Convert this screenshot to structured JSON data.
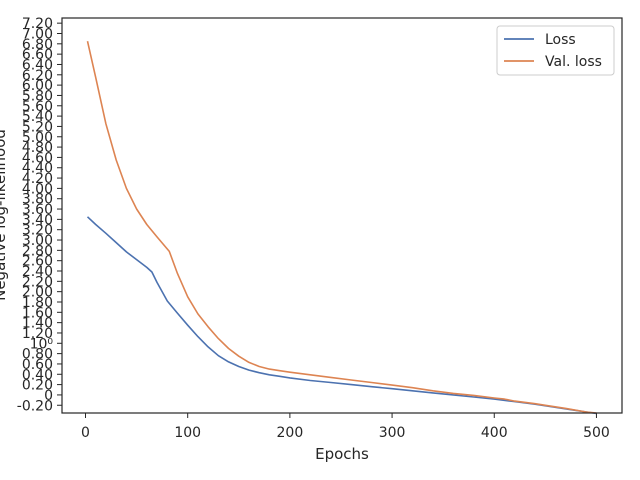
{
  "chart_data": {
    "type": "line",
    "xlabel": "Epochs",
    "ylabel": "Negative log-likelihood",
    "xlim": [
      -23,
      525
    ],
    "ylim": [
      -0.35,
      7.3
    ],
    "grid": false,
    "legend_position": "top-right",
    "x_ticks": [
      {
        "value": 0,
        "label": "0"
      },
      {
        "value": 100,
        "label": "100"
      },
      {
        "value": 200,
        "label": "200"
      },
      {
        "value": 300,
        "label": "300"
      },
      {
        "value": 400,
        "label": "400"
      },
      {
        "value": 500,
        "label": "500"
      }
    ],
    "y_ticks": [
      {
        "value": -0.2,
        "label": "-0.20"
      },
      {
        "value": 0,
        "label": "0"
      },
      {
        "value": 0.2,
        "label": "0.20"
      },
      {
        "value": 0.4,
        "label": "0.40"
      },
      {
        "value": 0.6,
        "label": "0.60"
      },
      {
        "value": 0.8,
        "label": "0.80"
      },
      {
        "value": 1.0,
        "label": "10⁰"
      },
      {
        "value": 1.2,
        "label": "1.20"
      },
      {
        "value": 1.4,
        "label": "1.40"
      },
      {
        "value": 1.6,
        "label": "1.60"
      },
      {
        "value": 1.8,
        "label": "1.80"
      },
      {
        "value": 2.0,
        "label": "2.00"
      },
      {
        "value": 2.2,
        "label": "2.20"
      },
      {
        "value": 2.4,
        "label": "2.40"
      },
      {
        "value": 2.6,
        "label": "2.60"
      },
      {
        "value": 2.8,
        "label": "2.80"
      },
      {
        "value": 3.0,
        "label": "3.00"
      },
      {
        "value": 3.2,
        "label": "3.20"
      },
      {
        "value": 3.4,
        "label": "3.40"
      },
      {
        "value": 3.6,
        "label": "3.60"
      },
      {
        "value": 3.8,
        "label": "3.80"
      },
      {
        "value": 4.0,
        "label": "4.00"
      },
      {
        "value": 4.2,
        "label": "4.20"
      },
      {
        "value": 4.4,
        "label": "4.40"
      },
      {
        "value": 4.6,
        "label": "4.60"
      },
      {
        "value": 4.8,
        "label": "4.80"
      },
      {
        "value": 5.0,
        "label": "5.00"
      },
      {
        "value": 5.2,
        "label": "5.20"
      },
      {
        "value": 5.4,
        "label": "5.40"
      },
      {
        "value": 5.6,
        "label": "5.60"
      },
      {
        "value": 5.8,
        "label": "5.80"
      },
      {
        "value": 6.0,
        "label": "6.00"
      },
      {
        "value": 6.2,
        "label": "6.20"
      },
      {
        "value": 6.4,
        "label": "6.40"
      },
      {
        "value": 6.6,
        "label": "6.60"
      },
      {
        "value": 6.8,
        "label": "6.80"
      },
      {
        "value": 7.0,
        "label": "7.00"
      },
      {
        "value": 7.2,
        "label": "7.20"
      }
    ],
    "series": [
      {
        "name": "Loss",
        "color": "#4c72b0",
        "x": [
          2,
          10,
          20,
          30,
          40,
          50,
          60,
          65,
          70,
          80,
          90,
          100,
          110,
          120,
          130,
          140,
          150,
          160,
          170,
          180,
          190,
          200,
          220,
          240,
          260,
          280,
          300,
          320,
          340,
          360,
          380,
          400,
          420,
          440,
          460,
          480,
          500
        ],
        "y": [
          3.45,
          3.3,
          3.13,
          2.95,
          2.77,
          2.62,
          2.47,
          2.38,
          2.18,
          1.82,
          1.58,
          1.35,
          1.13,
          0.93,
          0.76,
          0.64,
          0.55,
          0.48,
          0.43,
          0.39,
          0.36,
          0.33,
          0.28,
          0.24,
          0.2,
          0.16,
          0.12,
          0.08,
          0.04,
          0.0,
          -0.04,
          -0.08,
          -0.13,
          -0.18,
          -0.24,
          -0.3,
          -0.36
        ]
      },
      {
        "name": "Val. loss",
        "color": "#dd8452",
        "x": [
          2,
          10,
          20,
          30,
          40,
          50,
          60,
          70,
          82,
          90,
          100,
          110,
          120,
          130,
          140,
          150,
          160,
          170,
          180,
          190,
          200,
          220,
          240,
          260,
          280,
          300,
          320,
          340,
          360,
          380,
          400,
          410,
          420,
          440,
          450,
          470,
          490,
          500
        ],
        "y": [
          6.85,
          6.15,
          5.25,
          4.55,
          4.0,
          3.6,
          3.3,
          3.06,
          2.78,
          2.35,
          1.9,
          1.57,
          1.32,
          1.09,
          0.9,
          0.75,
          0.63,
          0.55,
          0.5,
          0.47,
          0.44,
          0.39,
          0.34,
          0.29,
          0.24,
          0.19,
          0.14,
          0.08,
          0.03,
          -0.01,
          -0.06,
          -0.08,
          -0.12,
          -0.17,
          -0.2,
          -0.26,
          -0.33,
          -0.35
        ]
      }
    ]
  }
}
